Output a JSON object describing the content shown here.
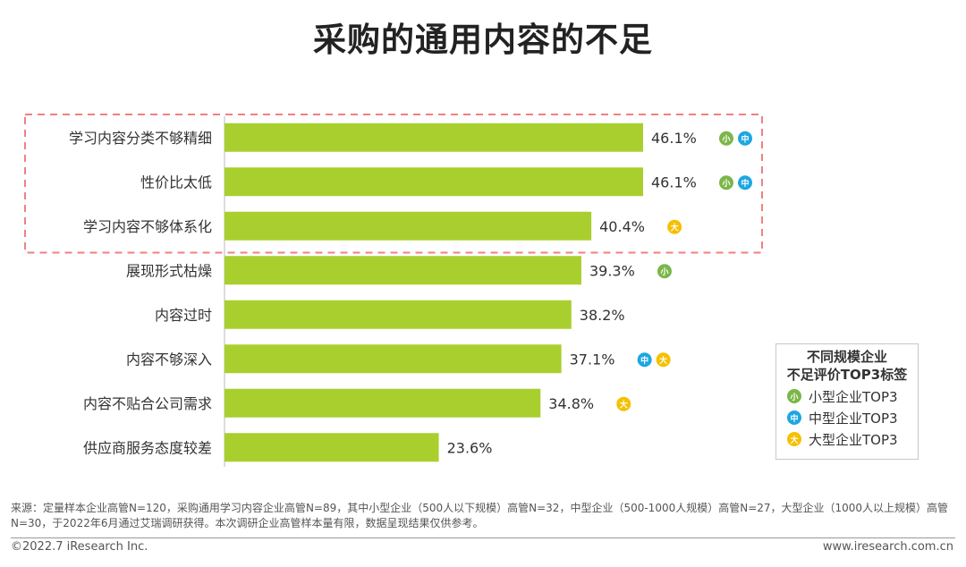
{
  "title": "采购的通用内容的不足",
  "chart_data": {
    "type": "bar",
    "orientation": "horizontal",
    "categories": [
      "学习内容分类不够精细",
      "性价比太低",
      "学习内容不够体系化",
      "展现形式枯燥",
      "内容过时",
      "内容不够深入",
      "内容不贴合公司需求",
      "供应商服务态度较差"
    ],
    "values": [
      46.1,
      46.1,
      40.4,
      39.3,
      38.2,
      37.1,
      34.8,
      23.6
    ],
    "value_labels": [
      "46.1%",
      "46.1%",
      "40.4%",
      "39.3%",
      "38.2%",
      "37.1%",
      "34.8%",
      "23.6%"
    ],
    "badges": [
      [
        "小",
        "中"
      ],
      [
        "小",
        "中"
      ],
      [
        "大"
      ],
      [
        "小"
      ],
      [],
      [
        "中",
        "大"
      ],
      [
        "大"
      ],
      []
    ],
    "highlighted_count": 3,
    "bar_color": "#a9cf2e",
    "highlight_border_color": "#f08080"
  },
  "legend": {
    "title_line1": "不同规模企业",
    "title_line2": "不足评价TOP3标签",
    "items": [
      {
        "badge": "小",
        "label": "小型企业TOP3",
        "color": "#7ab648"
      },
      {
        "badge": "中",
        "label": "中型企业TOP3",
        "color": "#1ea7e0"
      },
      {
        "badge": "大",
        "label": "大型企业TOP3",
        "color": "#f5c000"
      }
    ]
  },
  "footer": {
    "source": "来源：定量样本企业高管N=120，采购通用学习内容企业高管N=89，其中小型企业（500人以下规模）高管N=32，中型企业（500-1000人规模）高管N=27，大型企业（1000人以上规模）高管N=30，于2022年6月通过艾瑞调研获得。本次调研企业高管样本量有限，数据呈现结果仅供参考。",
    "copyright": "©2022.7 iResearch Inc.",
    "website": "www.iresearch.com.cn"
  }
}
